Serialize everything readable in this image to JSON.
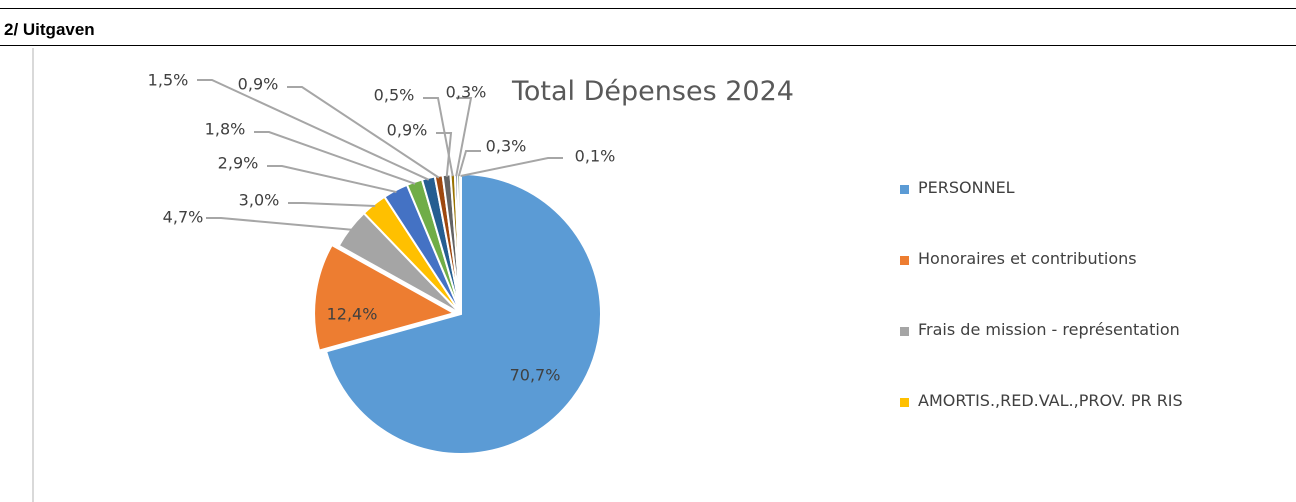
{
  "section": {
    "title": "2/ Uitgaven"
  },
  "chart_data": {
    "type": "pie",
    "title": "Total Dépenses 2024",
    "slices": [
      {
        "name": "PERSONNEL",
        "value": 70.7,
        "label": "70,7%",
        "color": "#5b9bd5"
      },
      {
        "name": "Honoraires et contributions",
        "value": 12.4,
        "label": "12,4%",
        "color": "#ed7d31"
      },
      {
        "name": "Frais de mission - représentation",
        "value": 4.7,
        "label": "4,7%",
        "color": "#a5a5a5"
      },
      {
        "name": "AMORTIS.,RED.VAL.,PROV. PR RIS",
        "value": 3.0,
        "label": "3,0%",
        "color": "#ffc000"
      },
      {
        "value": 2.9,
        "label": "2,9%",
        "color": "#4472c4"
      },
      {
        "value": 1.8,
        "label": "1,8%",
        "color": "#70ad47"
      },
      {
        "value": 1.5,
        "label": "1,5%",
        "color": "#255e91"
      },
      {
        "value": 0.9,
        "label": "0,9%",
        "color": "#9e480e"
      },
      {
        "value": 0.9,
        "label": "0,9%",
        "color": "#636363"
      },
      {
        "value": 0.5,
        "label": "0,5%",
        "color": "#997300"
      },
      {
        "value": 0.3,
        "label": "0,3%",
        "color": "#264478"
      },
      {
        "value": 0.3,
        "label": "0,3%",
        "color": "#43682b"
      },
      {
        "value": 0.1,
        "label": "0,1%",
        "color": "#698ed0"
      }
    ],
    "legend": {
      "placement": "right",
      "entries": [
        "PERSONNEL",
        "Honoraires et contributions",
        "Frais de mission - représentation",
        "AMORTIS.,RED.VAL.,PROV. PR RIS"
      ]
    },
    "data_label_color": "#404040",
    "leader_line_color": "#a6a6a6"
  }
}
